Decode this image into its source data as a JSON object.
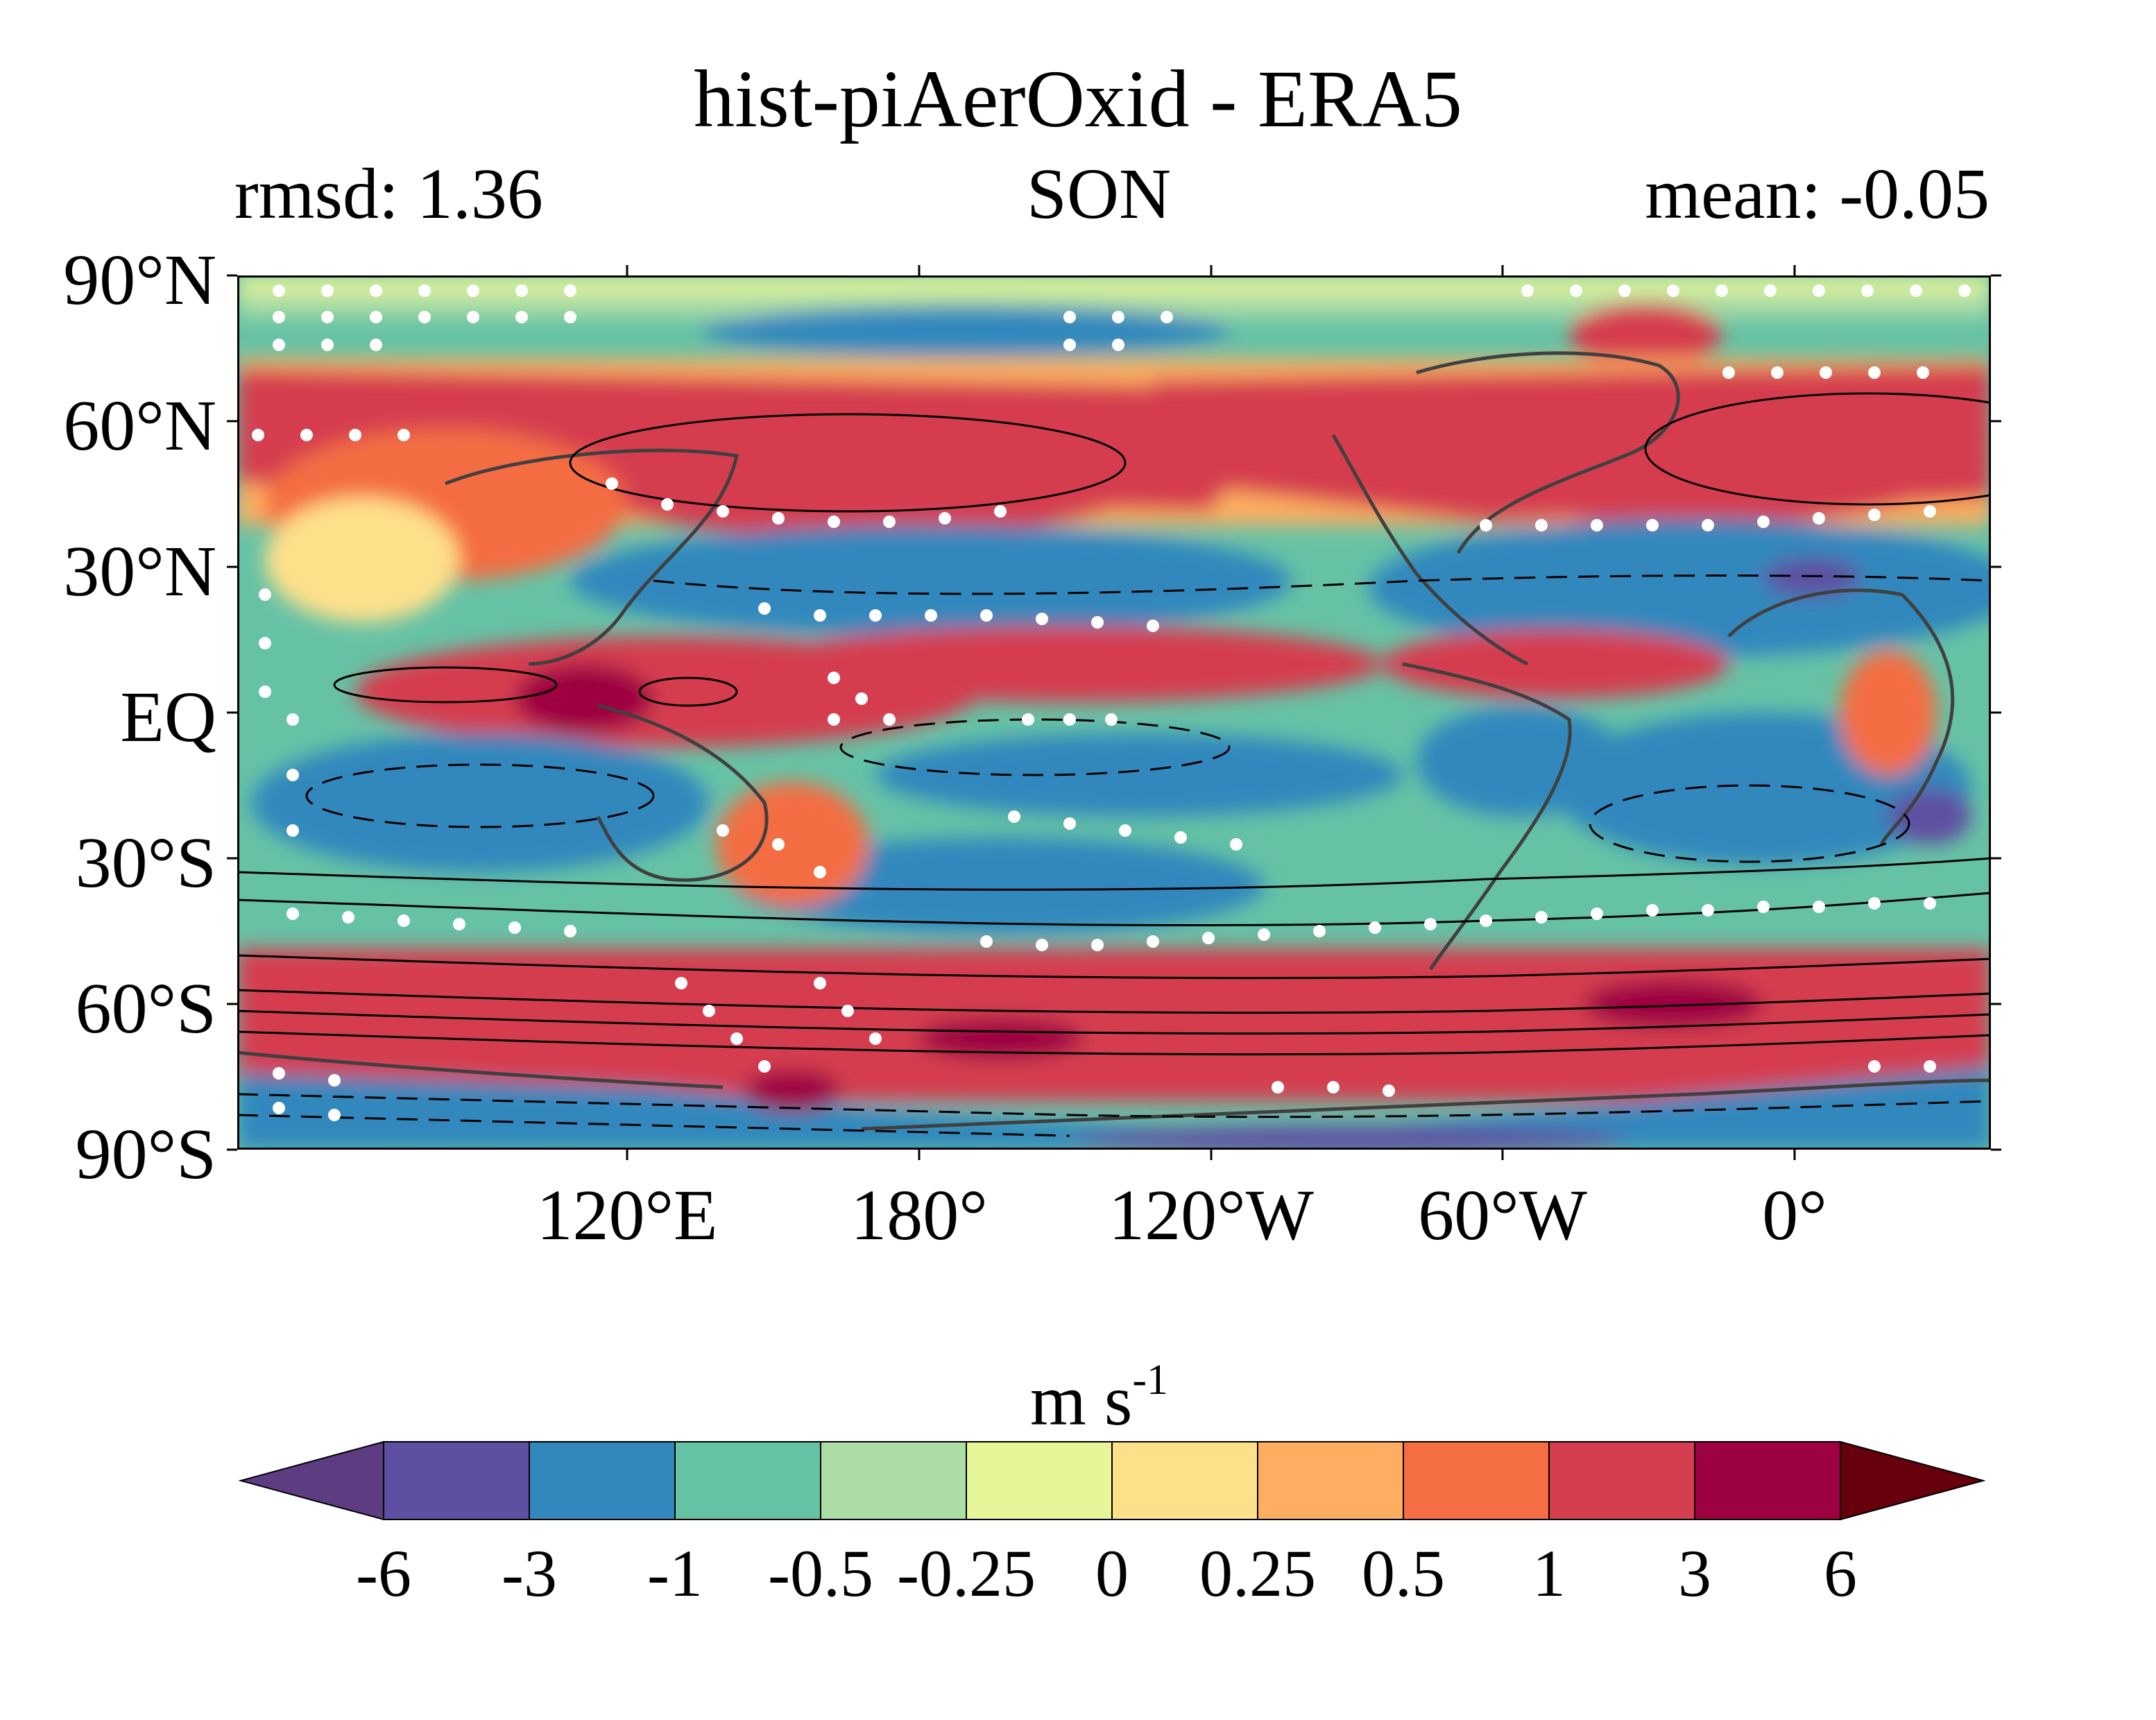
{
  "title": "hist-piAerOxid - ERA5",
  "subtitle_left": "rmsd: 1.36",
  "subtitle_center": "SON",
  "subtitle_right": "mean: -0.05",
  "map": {
    "lat_labels": [
      "90°N",
      "60°N",
      "30°N",
      "EQ",
      "30°S",
      "60°S",
      "90°S"
    ],
    "lon_labels": [
      "120°E",
      "180°",
      "120°W",
      "60°W",
      "0°"
    ],
    "lon_range": [
      40,
      400
    ],
    "lat_range": [
      -90,
      90
    ],
    "stippling": "white dots",
    "contours": "black solid (positive) and dashed (negative)"
  },
  "colorbar": {
    "unit_base": "m s",
    "unit_exp": "-1",
    "ticks": [
      "-6",
      "-3",
      "-1",
      "-0.5",
      "-0.25",
      "0",
      "0.25",
      "0.5",
      "1",
      "3",
      "6"
    ],
    "colors": [
      "#5e4fa2",
      "#3288bd",
      "#66c2a5",
      "#abdda4",
      "#e6f598",
      "#fee08b",
      "#fdae61",
      "#f46d43",
      "#d53e4f",
      "#9e0142"
    ],
    "under_color": "#5e3c82",
    "over_color": "#67000d",
    "extend": "both"
  }
}
